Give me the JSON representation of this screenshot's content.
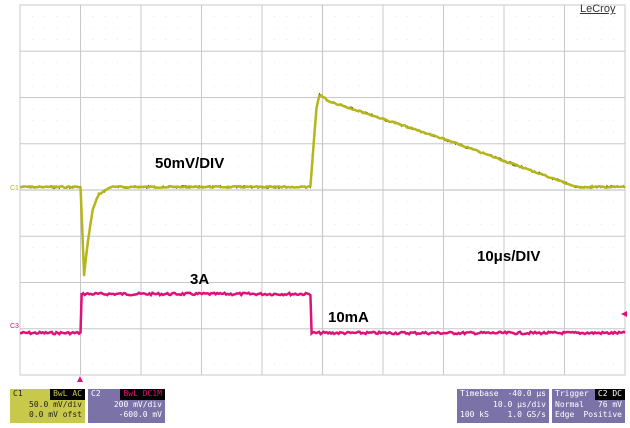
{
  "brand": "LeCroy",
  "annotations": {
    "vertical_scale": "50mV/DIV",
    "time_scale": "10μs/DIV",
    "high_current": "3A",
    "low_current": "10mA"
  },
  "channel_markers": {
    "c1": "C1",
    "c3": "C3"
  },
  "info": {
    "c1": {
      "label": "C1",
      "tag": "BwL AC",
      "scale": "50.0 mV/div",
      "offset": "0.0 mV ofst"
    },
    "c2": {
      "label": "C2",
      "tag": "BwL DC1M",
      "scale": "200 mV/div",
      "offset": "-600.0 mV"
    },
    "timebase": {
      "label": "Timebase",
      "delay": "-40.0 μs",
      "per_div": "10.0 μs/div",
      "samples": "100 kS",
      "rate": "1.0 GS/s"
    },
    "trigger": {
      "label": "Trigger",
      "tag": "C2 DC",
      "mode": "Normal",
      "level": "76 mV",
      "type": "Edge",
      "slope": "Positive"
    }
  },
  "colors": {
    "ch1": "#b5b51c",
    "ch1_dark": "#5a5a00",
    "ch3": "#e0107a",
    "grid": "#c8c8c8",
    "info_yellow": "#c8c84a",
    "info_purple": "#7b73a8"
  },
  "chart_data": {
    "type": "line",
    "x_divisions": 10,
    "y_divisions": 8,
    "time_per_div_us": 10,
    "series": [
      {
        "channel": "C1",
        "unit": "mV",
        "x": [
          0,
          1.0,
          1.06,
          1.12,
          1.2,
          1.3,
          1.5,
          4.8,
          4.9,
          4.95,
          5.1,
          7.0,
          9.2,
          9.45,
          10
        ],
        "y": [
          0,
          0,
          -95,
          -60,
          -25,
          -8,
          0,
          0,
          85,
          100,
          93,
          52,
          0,
          0,
          0
        ]
      },
      {
        "channel": "C3",
        "unit": "A",
        "x": [
          0,
          1.0,
          1.02,
          4.8,
          4.82,
          10
        ],
        "y": [
          0.01,
          0.01,
          3,
          3,
          0.01,
          0.01
        ]
      }
    ]
  }
}
